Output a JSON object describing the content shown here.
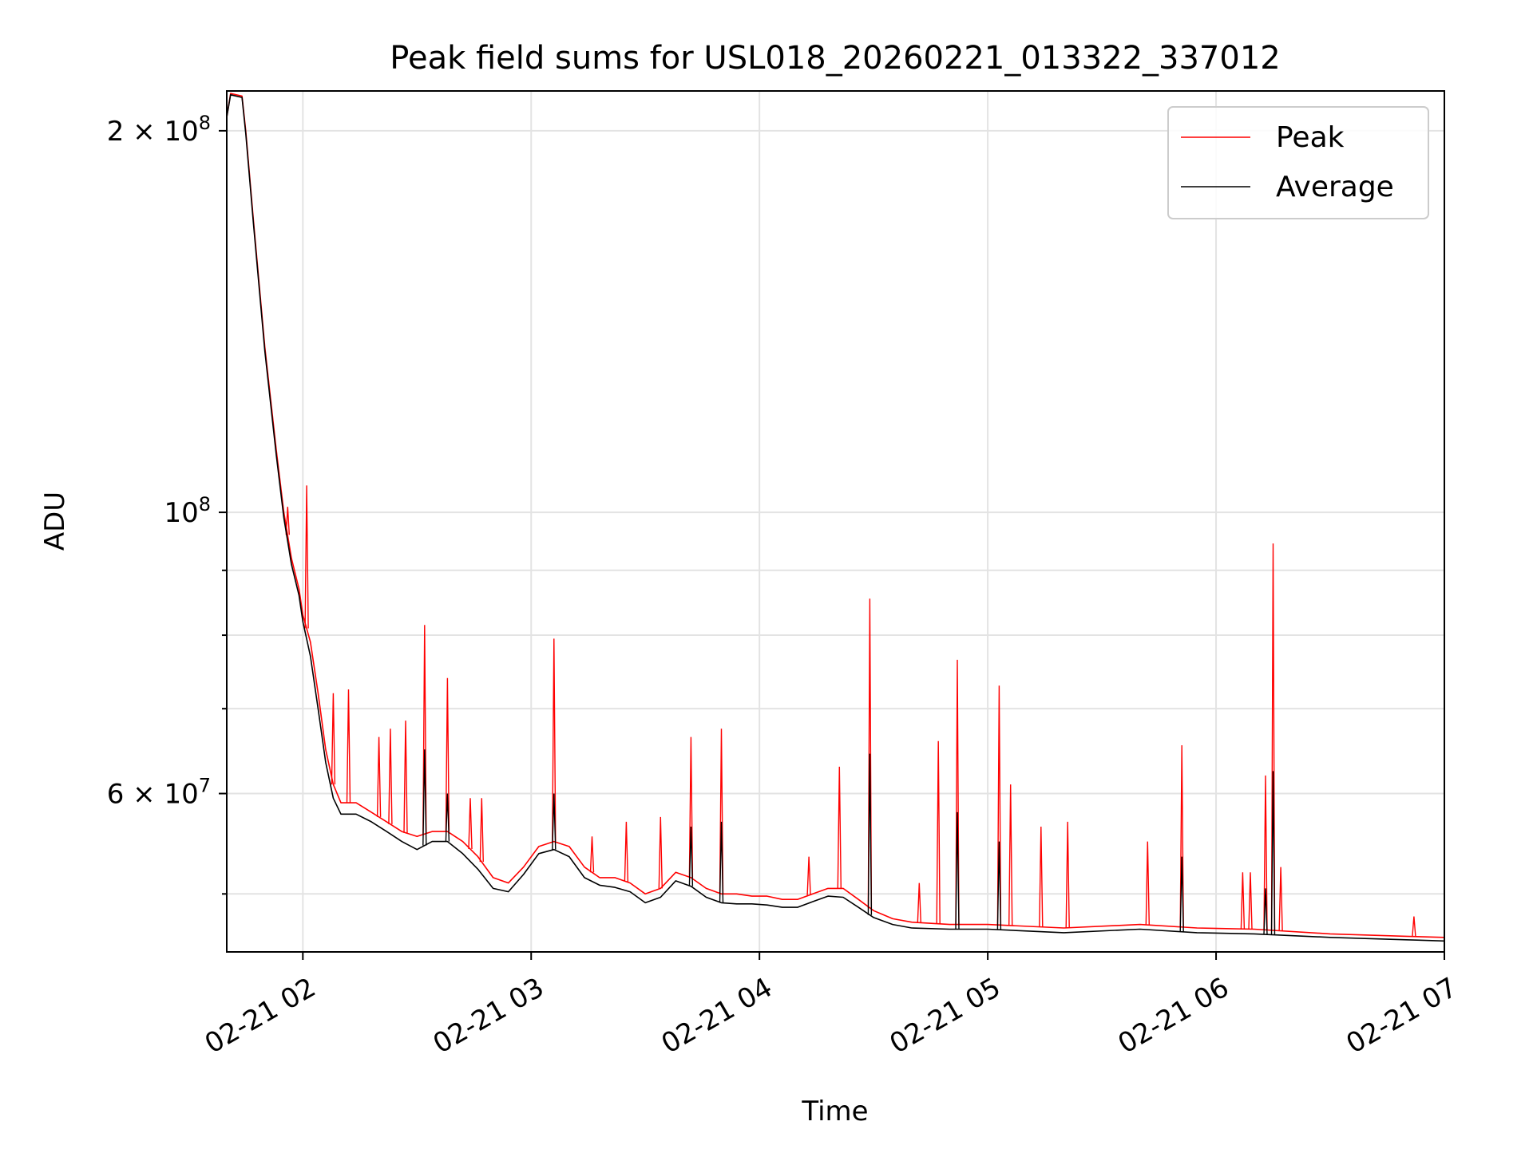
{
  "chart_data": {
    "type": "line",
    "title": "Peak field sums for USL018_20260221_013322_337012",
    "xlabel": "Time",
    "ylabel": "ADU",
    "x_scale": "time",
    "y_scale": "log",
    "xlim": [
      "2026-02-21 01:40",
      "2026-02-21 07:00"
    ],
    "ylim": [
      45000000,
      215000000
    ],
    "grid": true,
    "legend_position": "top-right",
    "x_ticks": [
      {
        "value": "2026-02-21 02:00",
        "label": "02-21 02"
      },
      {
        "value": "2026-02-21 03:00",
        "label": "02-21 03"
      },
      {
        "value": "2026-02-21 04:00",
        "label": "02-21 04"
      },
      {
        "value": "2026-02-21 05:00",
        "label": "02-21 05"
      },
      {
        "value": "2026-02-21 06:00",
        "label": "02-21 06"
      },
      {
        "value": "2026-02-21 07:00",
        "label": "02-21 07"
      }
    ],
    "y_major_ticks": [
      {
        "value": 60000000,
        "mant": "6",
        "exp": "7"
      },
      {
        "value": 100000000,
        "mant": "",
        "exp": "8"
      },
      {
        "value": 200000000,
        "mant": "2",
        "exp": "8"
      }
    ],
    "y_minor_ticks": [
      50000000,
      70000000,
      80000000,
      90000000
    ],
    "series": [
      {
        "name": "Peak",
        "color": "#ff0000",
        "points": [
          [
            "2026-02-21 01:40",
            205000000
          ],
          [
            "2026-02-21 01:41",
            214000000
          ],
          [
            "2026-02-21 01:44",
            213000000
          ],
          [
            "2026-02-21 01:45",
            200000000
          ],
          [
            "2026-02-21 01:47",
            170000000
          ],
          [
            "2026-02-21 01:50",
            135000000
          ],
          [
            "2026-02-21 01:53",
            112000000
          ],
          [
            "2026-02-21 01:55",
            100000000
          ],
          [
            "2026-02-21 01:57",
            92000000
          ],
          [
            "2026-02-21 01:59",
            87000000
          ],
          [
            "2026-02-21 02:00",
            83000000
          ],
          [
            "2026-02-21 02:02",
            79000000
          ],
          [
            "2026-02-21 02:04",
            72000000
          ],
          [
            "2026-02-21 02:06",
            65000000
          ],
          [
            "2026-02-21 02:08",
            61000000
          ],
          [
            "2026-02-21 02:10",
            59000000
          ],
          [
            "2026-02-21 02:14",
            59000000
          ],
          [
            "2026-02-21 02:18",
            58000000
          ],
          [
            "2026-02-21 02:22",
            57000000
          ],
          [
            "2026-02-21 02:26",
            56000000
          ],
          [
            "2026-02-21 02:30",
            55500000
          ],
          [
            "2026-02-21 02:34",
            56000000
          ],
          [
            "2026-02-21 02:38",
            56000000
          ],
          [
            "2026-02-21 02:42",
            55000000
          ],
          [
            "2026-02-21 02:46",
            53500000
          ],
          [
            "2026-02-21 02:50",
            51500000
          ],
          [
            "2026-02-21 02:54",
            51000000
          ],
          [
            "2026-02-21 02:58",
            52500000
          ],
          [
            "2026-02-21 03:02",
            54500000
          ],
          [
            "2026-02-21 03:06",
            55000000
          ],
          [
            "2026-02-21 03:10",
            54500000
          ],
          [
            "2026-02-21 03:14",
            52500000
          ],
          [
            "2026-02-21 03:18",
            51500000
          ],
          [
            "2026-02-21 03:22",
            51500000
          ],
          [
            "2026-02-21 03:26",
            51000000
          ],
          [
            "2026-02-21 03:30",
            50000000
          ],
          [
            "2026-02-21 03:34",
            50500000
          ],
          [
            "2026-02-21 03:38",
            52000000
          ],
          [
            "2026-02-21 03:42",
            51500000
          ],
          [
            "2026-02-21 03:46",
            50500000
          ],
          [
            "2026-02-21 03:50",
            50000000
          ],
          [
            "2026-02-21 03:54",
            50000000
          ],
          [
            "2026-02-21 03:58",
            49800000
          ],
          [
            "2026-02-21 04:02",
            49800000
          ],
          [
            "2026-02-21 04:06",
            49500000
          ],
          [
            "2026-02-21 04:10",
            49500000
          ],
          [
            "2026-02-21 04:14",
            50000000
          ],
          [
            "2026-02-21 04:18",
            50500000
          ],
          [
            "2026-02-21 04:22",
            50500000
          ],
          [
            "2026-02-21 04:26",
            49500000
          ],
          [
            "2026-02-21 04:30",
            48500000
          ],
          [
            "2026-02-21 04:35",
            47800000
          ],
          [
            "2026-02-21 04:40",
            47500000
          ],
          [
            "2026-02-21 04:50",
            47300000
          ],
          [
            "2026-02-21 05:00",
            47300000
          ],
          [
            "2026-02-21 05:20",
            47000000
          ],
          [
            "2026-02-21 05:40",
            47300000
          ],
          [
            "2026-02-21 05:55",
            47000000
          ],
          [
            "2026-02-21 06:10",
            46900000
          ],
          [
            "2026-02-21 06:30",
            46500000
          ],
          [
            "2026-02-21 06:50",
            46300000
          ],
          [
            "2026-02-21 07:00",
            46200000
          ]
        ],
        "spikes": [
          [
            "2026-02-21 01:56",
            101000000
          ],
          [
            "2026-02-21 02:01",
            105000000
          ],
          [
            "2026-02-21 02:08",
            72000000
          ],
          [
            "2026-02-21 02:12",
            72500000
          ],
          [
            "2026-02-21 02:20",
            66500000
          ],
          [
            "2026-02-21 02:23",
            67500000
          ],
          [
            "2026-02-21 02:27",
            68500000
          ],
          [
            "2026-02-21 02:32",
            81500000
          ],
          [
            "2026-02-21 02:38",
            74000000
          ],
          [
            "2026-02-21 02:44",
            59500000
          ],
          [
            "2026-02-21 02:47",
            59500000
          ],
          [
            "2026-02-21 03:06",
            79500000
          ],
          [
            "2026-02-21 03:16",
            55500000
          ],
          [
            "2026-02-21 03:25",
            57000000
          ],
          [
            "2026-02-21 03:34",
            57500000
          ],
          [
            "2026-02-21 03:42",
            66500000
          ],
          [
            "2026-02-21 03:50",
            67500000
          ],
          [
            "2026-02-21 04:13",
            53500000
          ],
          [
            "2026-02-21 04:21",
            63000000
          ],
          [
            "2026-02-21 04:29",
            85500000
          ],
          [
            "2026-02-21 04:42",
            51000000
          ],
          [
            "2026-02-21 04:47",
            66000000
          ],
          [
            "2026-02-21 04:52",
            76500000
          ],
          [
            "2026-02-21 05:03",
            73000000
          ],
          [
            "2026-02-21 05:06",
            61000000
          ],
          [
            "2026-02-21 05:14",
            56500000
          ],
          [
            "2026-02-21 05:21",
            57000000
          ],
          [
            "2026-02-21 05:42",
            55000000
          ],
          [
            "2026-02-21 05:51",
            65500000
          ],
          [
            "2026-02-21 06:07",
            52000000
          ],
          [
            "2026-02-21 06:09",
            52000000
          ],
          [
            "2026-02-21 06:13",
            62000000
          ],
          [
            "2026-02-21 06:15",
            94500000
          ],
          [
            "2026-02-21 06:17",
            52500000
          ],
          [
            "2026-02-21 06:52",
            48000000
          ]
        ]
      },
      {
        "name": "Average",
        "color": "#000000",
        "points": [
          [
            "2026-02-21 01:40",
            205000000
          ],
          [
            "2026-02-21 01:41",
            213500000
          ],
          [
            "2026-02-21 01:44",
            212500000
          ],
          [
            "2026-02-21 01:45",
            199000000
          ],
          [
            "2026-02-21 01:47",
            169000000
          ],
          [
            "2026-02-21 01:50",
            134000000
          ],
          [
            "2026-02-21 01:53",
            111000000
          ],
          [
            "2026-02-21 01:55",
            99000000
          ],
          [
            "2026-02-21 01:57",
            91000000
          ],
          [
            "2026-02-21 01:59",
            86000000
          ],
          [
            "2026-02-21 02:00",
            82000000
          ],
          [
            "2026-02-21 02:02",
            77000000
          ],
          [
            "2026-02-21 02:04",
            70000000
          ],
          [
            "2026-02-21 02:06",
            63500000
          ],
          [
            "2026-02-21 02:08",
            59500000
          ],
          [
            "2026-02-21 02:10",
            57800000
          ],
          [
            "2026-02-21 02:14",
            57800000
          ],
          [
            "2026-02-21 02:18",
            57000000
          ],
          [
            "2026-02-21 02:22",
            56000000
          ],
          [
            "2026-02-21 02:26",
            55000000
          ],
          [
            "2026-02-21 02:30",
            54200000
          ],
          [
            "2026-02-21 02:34",
            55000000
          ],
          [
            "2026-02-21 02:38",
            55000000
          ],
          [
            "2026-02-21 02:42",
            53800000
          ],
          [
            "2026-02-21 02:46",
            52300000
          ],
          [
            "2026-02-21 02:50",
            50500000
          ],
          [
            "2026-02-21 02:54",
            50200000
          ],
          [
            "2026-02-21 02:58",
            51800000
          ],
          [
            "2026-02-21 03:02",
            53800000
          ],
          [
            "2026-02-21 03:06",
            54200000
          ],
          [
            "2026-02-21 03:10",
            53500000
          ],
          [
            "2026-02-21 03:14",
            51500000
          ],
          [
            "2026-02-21 03:18",
            50800000
          ],
          [
            "2026-02-21 03:22",
            50600000
          ],
          [
            "2026-02-21 03:26",
            50200000
          ],
          [
            "2026-02-21 03:30",
            49200000
          ],
          [
            "2026-02-21 03:34",
            49700000
          ],
          [
            "2026-02-21 03:38",
            51200000
          ],
          [
            "2026-02-21 03:42",
            50700000
          ],
          [
            "2026-02-21 03:46",
            49700000
          ],
          [
            "2026-02-21 03:50",
            49200000
          ],
          [
            "2026-02-21 03:54",
            49100000
          ],
          [
            "2026-02-21 03:58",
            49100000
          ],
          [
            "2026-02-21 04:02",
            49000000
          ],
          [
            "2026-02-21 04:06",
            48800000
          ],
          [
            "2026-02-21 04:10",
            48800000
          ],
          [
            "2026-02-21 04:14",
            49300000
          ],
          [
            "2026-02-21 04:18",
            49800000
          ],
          [
            "2026-02-21 04:22",
            49700000
          ],
          [
            "2026-02-21 04:26",
            48800000
          ],
          [
            "2026-02-21 04:30",
            47900000
          ],
          [
            "2026-02-21 04:35",
            47300000
          ],
          [
            "2026-02-21 04:40",
            47000000
          ],
          [
            "2026-02-21 04:50",
            46900000
          ],
          [
            "2026-02-21 05:00",
            46900000
          ],
          [
            "2026-02-21 05:20",
            46600000
          ],
          [
            "2026-02-21 05:40",
            46900000
          ],
          [
            "2026-02-21 05:55",
            46600000
          ],
          [
            "2026-02-21 06:10",
            46500000
          ],
          [
            "2026-02-21 06:30",
            46200000
          ],
          [
            "2026-02-21 06:50",
            46000000
          ],
          [
            "2026-02-21 07:00",
            45900000
          ]
        ],
        "spikes": [
          [
            "2026-02-21 02:32",
            65000000
          ],
          [
            "2026-02-21 02:38",
            60000000
          ],
          [
            "2026-02-21 03:06",
            60000000
          ],
          [
            "2026-02-21 03:42",
            56500000
          ],
          [
            "2026-02-21 03:50",
            57000000
          ],
          [
            "2026-02-21 04:29",
            64500000
          ],
          [
            "2026-02-21 04:52",
            58000000
          ],
          [
            "2026-02-21 05:03",
            55000000
          ],
          [
            "2026-02-21 05:51",
            53500000
          ],
          [
            "2026-02-21 06:15",
            62500000
          ],
          [
            "2026-02-21 06:13",
            50500000
          ]
        ]
      }
    ]
  }
}
